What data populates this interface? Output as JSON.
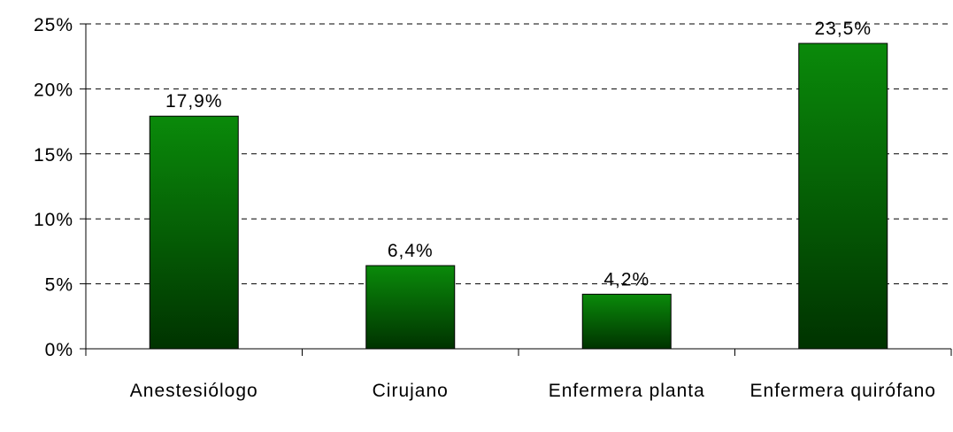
{
  "chart_data": {
    "type": "bar",
    "categories": [
      "Anestesiólogo",
      "Cirujano",
      "Enfermera planta",
      "Enfermera quirófano"
    ],
    "values": [
      17.9,
      6.4,
      4.2,
      23.5
    ],
    "value_labels": [
      "17,9%",
      "6,4%",
      "4,2%",
      "23,5%"
    ],
    "color": "#0a8a0a",
    "ylim": [
      0,
      25
    ],
    "yticks": [
      {
        "value": 0,
        "label": "0%"
      },
      {
        "value": 5,
        "label": "5%"
      },
      {
        "value": 10,
        "label": "10%"
      },
      {
        "value": 15,
        "label": "15%"
      },
      {
        "value": 20,
        "label": "20%"
      },
      {
        "value": 25,
        "label": "25%"
      }
    ],
    "grid": true
  }
}
